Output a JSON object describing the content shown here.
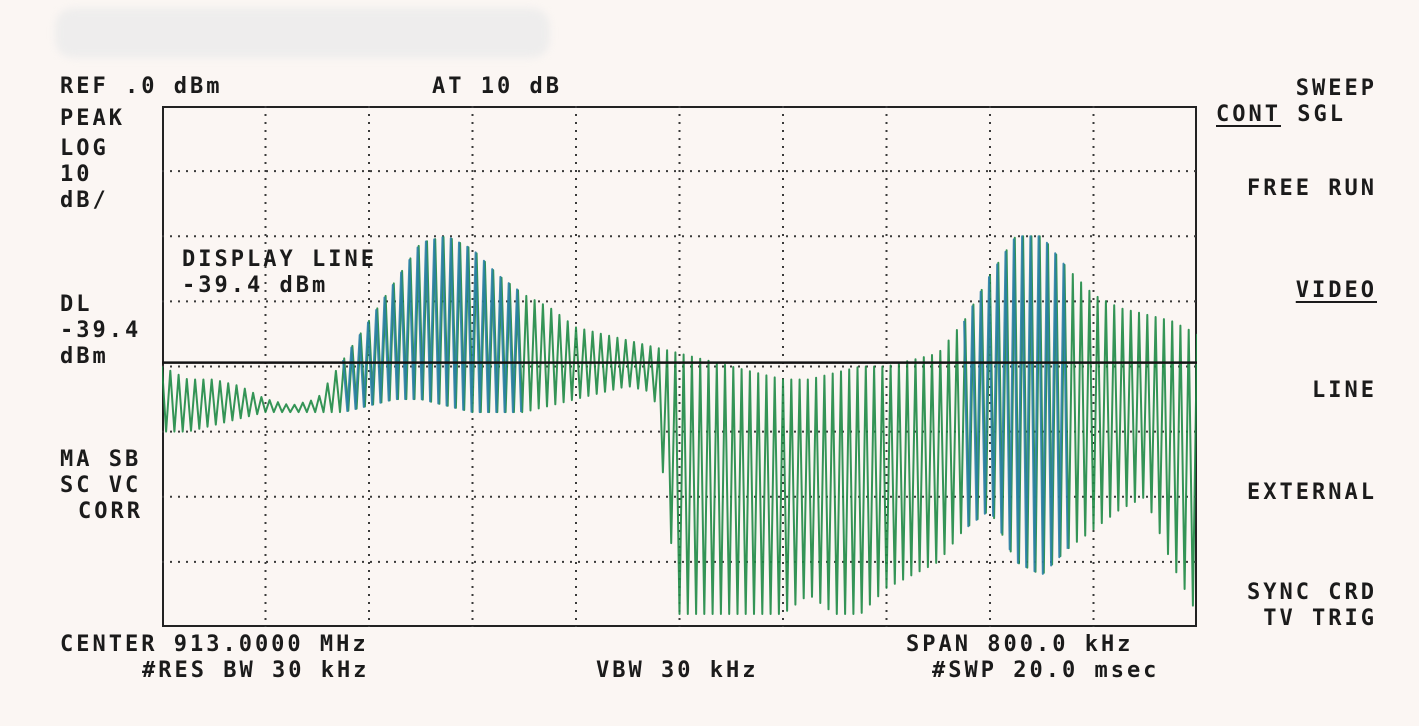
{
  "header": {
    "ref": "REF .0 dBm",
    "atten": "AT 10 dB"
  },
  "left_panel": {
    "detector": "PEAK",
    "scale_line1": "LOG",
    "scale_line2": "10",
    "scale_line3": "dB/",
    "dl_label": "DL",
    "dl_value": "-39.4",
    "dl_unit": "dBm",
    "ma_sb": "MA SB",
    "sc_vc": "SC VC",
    "corr": "CORR"
  },
  "softkeys": {
    "sweep": "SWEEP",
    "cont": "CONT",
    "sgl": "SGL",
    "free_run": "FREE RUN",
    "video": "VIDEO",
    "line": "LINE",
    "external": "EXTERNAL",
    "sync_crd": "SYNC CRD",
    "tv_trig": "TV TRIG"
  },
  "annotation": {
    "line1": "DISPLAY LINE",
    "line2": "-39.4 dBm"
  },
  "footer": {
    "center": "CENTER 913.0000 MHz",
    "span": "SPAN 800.0 kHz",
    "rbw": "#RES BW 30 kHz",
    "vbw": "VBW 30 kHz",
    "swp": "#SWP 20.0 msec"
  },
  "colors": {
    "background": "#fbf6f3",
    "grid": "#3a3a3a",
    "trace_green": "#1e8a45",
    "trace_blue": "#2a7fa6",
    "display_line": "#141414"
  },
  "chart_data": {
    "type": "line",
    "title": "",
    "xlabel": "",
    "ylabel": "",
    "x_center_mhz": 913.0,
    "x_span_khz": 800,
    "xlim_khz": [
      -400,
      400
    ],
    "ylim": [
      -80,
      0
    ],
    "y_per_div_db": 10,
    "grid": true,
    "display_line": -39.4,
    "series": [
      {
        "style": "envelope-top",
        "x": [
          -400,
          -380,
          -360,
          -340,
          -320,
          -300,
          -280,
          -260,
          -240,
          -220,
          -200,
          -180,
          -160,
          -140,
          -120,
          -100,
          -80,
          -60,
          -40,
          -20,
          0,
          20,
          40,
          60,
          80,
          100,
          120,
          140,
          160,
          180,
          200,
          220,
          240,
          260,
          280,
          300,
          320,
          340,
          360,
          380,
          400
        ],
        "y": [
          -40,
          -42,
          -42,
          -43,
          -45,
          -46,
          -45,
          -39,
          -33,
          -27,
          -21,
          -20,
          -22,
          -26,
          -29,
          -31,
          -34,
          -35,
          -36,
          -37,
          -38,
          -39,
          -40,
          -41,
          -42,
          -42,
          -41,
          -40,
          -40,
          -39,
          -38,
          -33,
          -26,
          -20,
          -20,
          -25,
          -29,
          -31,
          -32,
          -33,
          -35
        ]
      },
      {
        "style": "envelope-bottom",
        "x": [
          -400,
          -380,
          -360,
          -340,
          -320,
          -300,
          -280,
          -260,
          -240,
          -220,
          -200,
          -180,
          -160,
          -140,
          -120,
          -100,
          -80,
          -60,
          -40,
          -20,
          0,
          20,
          40,
          60,
          80,
          100,
          120,
          140,
          160,
          180,
          200,
          220,
          240,
          260,
          280,
          300,
          320,
          340,
          360,
          380,
          400
        ],
        "y": [
          -50,
          -50,
          -49,
          -48,
          -47,
          -47,
          -47,
          -47,
          -46,
          -45,
          -45,
          -46,
          -47,
          -47,
          -47,
          -46,
          -45,
          -44,
          -43,
          -44,
          -78,
          -78,
          -78,
          -78,
          -78,
          -75,
          -78,
          -78,
          -74,
          -72,
          -70,
          -65,
          -62,
          -70,
          -72,
          -68,
          -65,
          -62,
          -60,
          -70,
          -78
        ]
      }
    ]
  }
}
